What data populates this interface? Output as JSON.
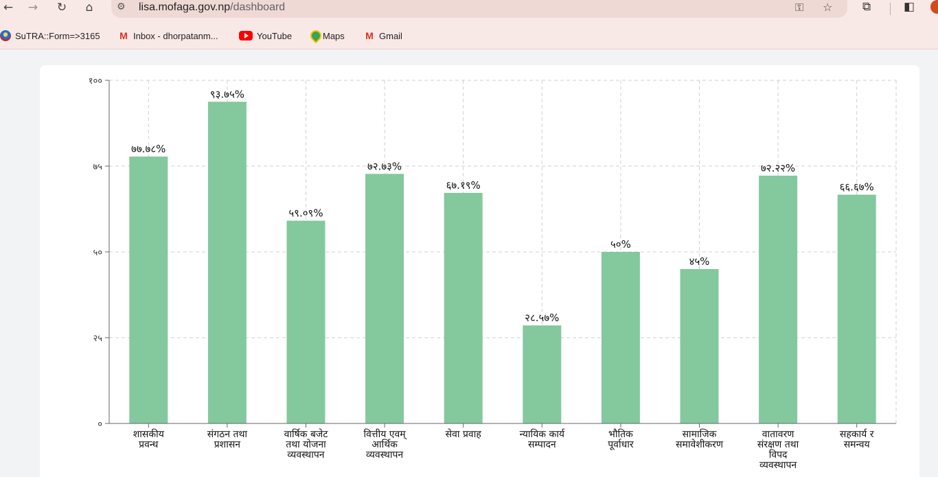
{
  "browser": {
    "url_host": "lisa.mofaga.gov.np",
    "url_path": "/dashboard",
    "icons": {
      "back": "arrow-left-icon",
      "forward": "arrow-right-icon",
      "reload": "reload-icon",
      "home": "home-icon",
      "site_info": "tune-icon",
      "password": "key-icon",
      "bookmark": "star-icon",
      "extensions": "puzzle-icon",
      "side_panel": "side-panel-icon"
    }
  },
  "bookmarks": [
    {
      "label": "SuTRA::Form=>3165",
      "icon": "sutra-icon"
    },
    {
      "label": "Inbox - dhorpatanm...",
      "icon": "gmail-icon"
    },
    {
      "label": "YouTube",
      "icon": "youtube-icon"
    },
    {
      "label": "Maps",
      "icon": "maps-icon"
    },
    {
      "label": "Gmail",
      "icon": "gmail-icon"
    }
  ],
  "chart_data": {
    "type": "bar",
    "ylim": [
      0,
      100
    ],
    "y_ticks": [
      {
        "value": 0,
        "label": "०"
      },
      {
        "value": 25,
        "label": "२५"
      },
      {
        "value": 50,
        "label": "५०"
      },
      {
        "value": 75,
        "label": "७५"
      },
      {
        "value": 100,
        "label": "१००"
      }
    ],
    "grid": true,
    "bar_color": "#84c89e",
    "categories": [
      [
        "शासकीय",
        "प्रवन्ध"
      ],
      [
        "संगठन तथा",
        "प्रशासन"
      ],
      [
        "वार्षिक बजेट",
        "तथा योजना",
        "व्यवस्थापन"
      ],
      [
        "वित्तीय एवम्",
        "आर्थिक",
        "व्यवस्थापन"
      ],
      [
        "सेवा प्रवाह"
      ],
      [
        "न्यायिक कार्य",
        "सम्पादन"
      ],
      [
        "भौतिक",
        "पूर्वाधार"
      ],
      [
        "सामाजिक",
        "समावेशीकरण"
      ],
      [
        "वातावरण",
        "संरक्षण तथा",
        "विपद",
        "व्यवस्थापन"
      ],
      [
        "सहकार्य र",
        "समन्वय"
      ]
    ],
    "values": [
      77.78,
      93.75,
      59.09,
      72.73,
      67.19,
      28.57,
      50,
      45,
      72.22,
      66.67
    ],
    "value_labels": [
      "७७.७८%",
      "९३.७५%",
      "५९.०९%",
      "७२.७३%",
      "६७.१९%",
      "२८.५७%",
      "५०%",
      "४५%",
      "७२.२२%",
      "६६.६७%"
    ]
  }
}
